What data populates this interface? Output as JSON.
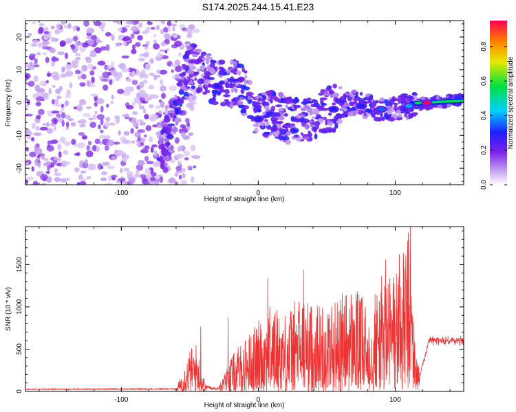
{
  "title": "S174.2025.244.15.41.E23",
  "chart_data": [
    {
      "type": "heatmap",
      "title": "S174.2025.244.15.41.E23",
      "xlabel": "Height of straight line (km)",
      "ylabel": "Frequency (Hz)",
      "xlim": [
        -170,
        150
      ],
      "ylim": [
        -25,
        25
      ],
      "x_ticks": [
        -100,
        0,
        100
      ],
      "y_ticks": [
        -20,
        -10,
        0,
        10,
        20
      ],
      "colorbar": {
        "label": "Normalized spectral amplitude",
        "range": [
          0,
          0.95
        ],
        "ticks": [
          0.0,
          0.2,
          0.4,
          0.6,
          0.8
        ]
      },
      "features": [
        {
          "kind": "noise",
          "x_range": [
            -170,
            -70
          ],
          "y_range": [
            -25,
            25
          ],
          "amplitude": 0.08
        },
        {
          "kind": "signal_track",
          "points": [
            [
              -70,
              -15
            ],
            [
              -60,
              -3
            ],
            [
              -50,
              12
            ],
            [
              -40,
              9
            ],
            [
              -30,
              6
            ],
            [
              -15,
              6
            ],
            [
              -8,
              2
            ],
            [
              0,
              -4
            ],
            [
              10,
              -3
            ],
            [
              20,
              -5
            ],
            [
              30,
              -6
            ],
            [
              40,
              -4
            ],
            [
              50,
              -2
            ],
            [
              60,
              -1
            ],
            [
              70,
              0
            ],
            [
              85,
              -2
            ],
            [
              100,
              -2
            ],
            [
              110,
              -1
            ],
            [
              125,
              0
            ],
            [
              150,
              1
            ]
          ]
        },
        {
          "kind": "hotspot",
          "x": -30,
          "y": 5,
          "amplitude": 0.3
        },
        {
          "kind": "hotspot",
          "x": 0,
          "y": -5,
          "amplitude": 0.3
        },
        {
          "kind": "hotspot",
          "x": 55,
          "y": -2,
          "amplitude": 0.3
        },
        {
          "kind": "hotspot",
          "x": 75,
          "y": -1,
          "amplitude": 0.3
        },
        {
          "kind": "hotspot",
          "x": 90,
          "y": -2,
          "amplitude": 0.35
        },
        {
          "kind": "hotspot",
          "x": 110,
          "y": -1,
          "amplitude": 0.4
        },
        {
          "kind": "hotspot",
          "x": 123,
          "y": 0,
          "amplitude": 0.95
        }
      ]
    },
    {
      "type": "line",
      "xlabel": "Height of straight line (km)",
      "ylabel": "SNR (10 * v/v)",
      "xlim": [
        -170,
        150
      ],
      "ylim": [
        0,
        1950
      ],
      "x_ticks": [
        -100,
        0,
        100
      ],
      "y_ticks": [
        0,
        500,
        1000,
        1500
      ],
      "color": "#ee3333",
      "envelope": [
        [
          -170,
          25
        ],
        [
          -60,
          30
        ],
        [
          -55,
          250
        ],
        [
          -50,
          480
        ],
        [
          -45,
          560
        ],
        [
          -42,
          300
        ],
        [
          -38,
          60
        ],
        [
          -30,
          30
        ],
        [
          -25,
          200
        ],
        [
          -20,
          400
        ],
        [
          -10,
          600
        ],
        [
          0,
          800
        ],
        [
          10,
          1000
        ],
        [
          20,
          900
        ],
        [
          30,
          1100
        ],
        [
          40,
          1000
        ],
        [
          50,
          1000
        ],
        [
          60,
          1100
        ],
        [
          70,
          1200
        ],
        [
          80,
          1000
        ],
        [
          90,
          1300
        ],
        [
          97,
          1400
        ],
        [
          105,
          1500
        ],
        [
          111,
          1950
        ],
        [
          114,
          700
        ],
        [
          118,
          200
        ],
        [
          125,
          600
        ],
        [
          150,
          600
        ]
      ],
      "peaks": [
        [
          -42,
          770
        ],
        [
          -22,
          870
        ],
        [
          7,
          1340
        ],
        [
          33,
          1440
        ],
        [
          93,
          1560
        ],
        [
          103,
          1620
        ],
        [
          111,
          1950
        ]
      ]
    }
  ]
}
